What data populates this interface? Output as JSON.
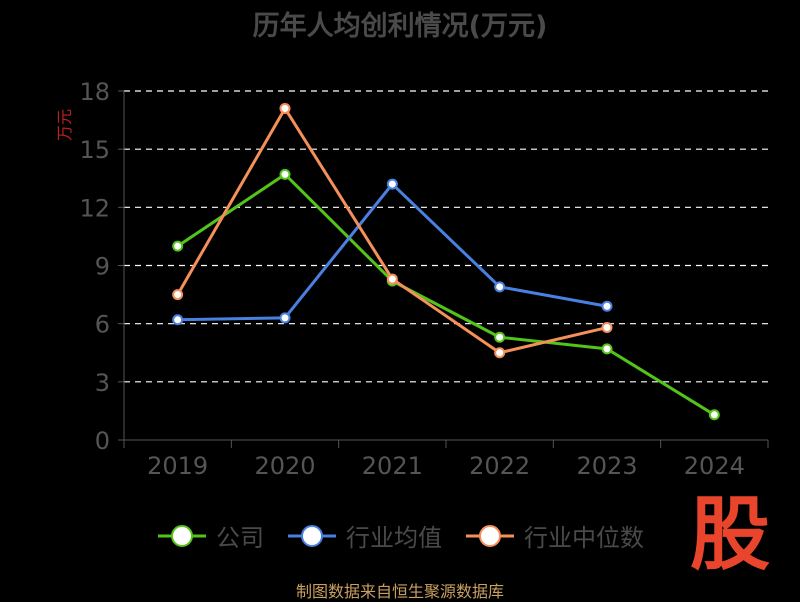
{
  "chart_data": {
    "type": "line",
    "title": "历年人均创利情况(万元)",
    "ylabel": "万元",
    "xlabel": "",
    "categories": [
      "2019",
      "2020",
      "2021",
      "2022",
      "2023",
      "2024"
    ],
    "ylim": [
      0,
      18
    ],
    "yticks": [
      0,
      3,
      6,
      9,
      12,
      15,
      18
    ],
    "grid": true,
    "legend_position": "bottom",
    "series": [
      {
        "name": "公司",
        "color": "#52c41a",
        "values": [
          10.0,
          13.7,
          8.2,
          5.3,
          4.7,
          1.3
        ]
      },
      {
        "name": "行业均值",
        "color": "#4a80e0",
        "values": [
          6.2,
          6.3,
          13.2,
          7.9,
          6.9,
          null
        ]
      },
      {
        "name": "行业中位数",
        "color": "#f5905a",
        "values": [
          7.5,
          17.1,
          8.3,
          4.5,
          5.8,
          null
        ]
      }
    ]
  },
  "footer": {
    "source": "制图数据来自恒生聚源数据库",
    "logo": "股"
  }
}
